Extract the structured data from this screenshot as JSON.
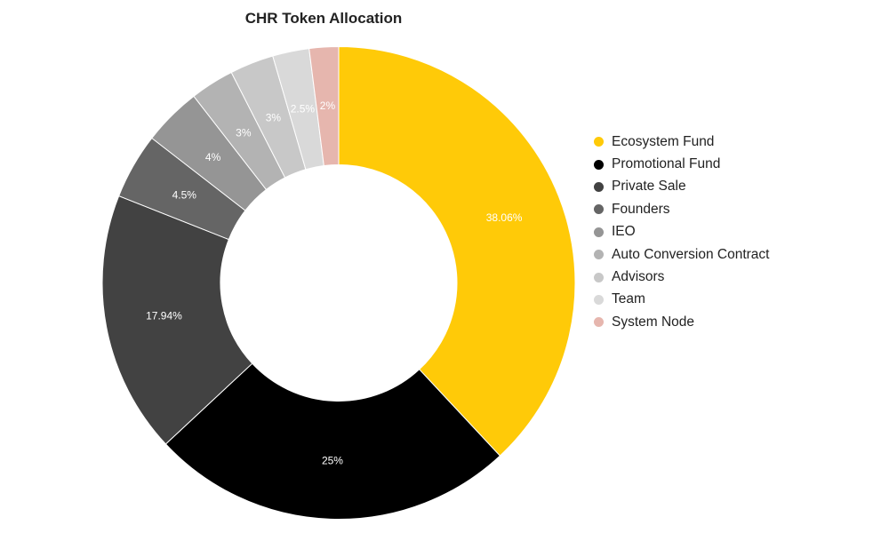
{
  "chart_data": {
    "type": "pie",
    "donut": true,
    "title": "CHR Token Allocation",
    "legend_position": "right",
    "categories": [
      "Ecosystem Fund",
      "Promotional Fund",
      "Private Sale",
      "Founders",
      "IEO",
      "Auto Conversion Contract",
      "Advisors",
      "Team",
      "System Node"
    ],
    "values": [
      38.06,
      25,
      17.94,
      4.5,
      4,
      3,
      3,
      2.5,
      2
    ],
    "data_labels": [
      "38.06%",
      "25%",
      "17.94%",
      "4.5%",
      "4%",
      "3%",
      "3%",
      "2.5%",
      "2%"
    ],
    "colors": [
      "#FFCA08",
      "#000000",
      "#424242",
      "#656565",
      "#959595",
      "#b3b3b3",
      "#c8c8c8",
      "#d9d9d9",
      "#e6b6ae"
    ]
  }
}
